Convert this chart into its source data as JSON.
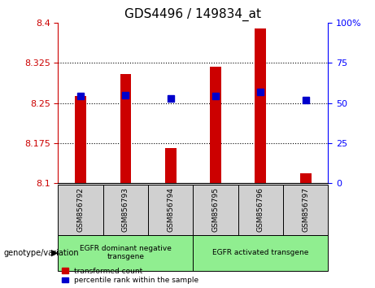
{
  "title": "GDS4496 / 149834_at",
  "samples": [
    "GSM856792",
    "GSM856793",
    "GSM856794",
    "GSM856795",
    "GSM856796",
    "GSM856797"
  ],
  "red_values": [
    8.263,
    8.305,
    8.165,
    8.318,
    8.39,
    8.118
  ],
  "blue_y_values": [
    8.263,
    8.265,
    8.258,
    8.263,
    8.27,
    8.256
  ],
  "ylim": [
    8.1,
    8.4
  ],
  "yticks": [
    8.1,
    8.175,
    8.25,
    8.325,
    8.4
  ],
  "ytick_labels": [
    "8.1",
    "8.175",
    "8.25",
    "8.325",
    "8.4"
  ],
  "right_yticks": [
    0,
    25,
    50,
    75,
    100
  ],
  "right_ytick_labels": [
    "0",
    "25",
    "50",
    "75",
    "100%"
  ],
  "group1_label": "EGFR dominant negative\ntransgene",
  "group2_label": "EGFR activated transgene",
  "group1_samples": [
    0,
    1,
    2
  ],
  "group2_samples": [
    3,
    4,
    5
  ],
  "xlabel_text": "genotype/variation",
  "legend_red": "transformed count",
  "legend_blue": "percentile rank within the sample",
  "red_color": "#cc0000",
  "blue_color": "#0000cc",
  "group_bg_color": "#90ee90",
  "sample_bg_color": "#d0d0d0",
  "red_bar_width": 0.25,
  "grid_color": "#000000",
  "title_fontsize": 11,
  "tick_fontsize": 8,
  "label_fontsize": 7.5,
  "grid_lines": [
    8.175,
    8.25,
    8.325
  ],
  "blue_marker_size": 6
}
